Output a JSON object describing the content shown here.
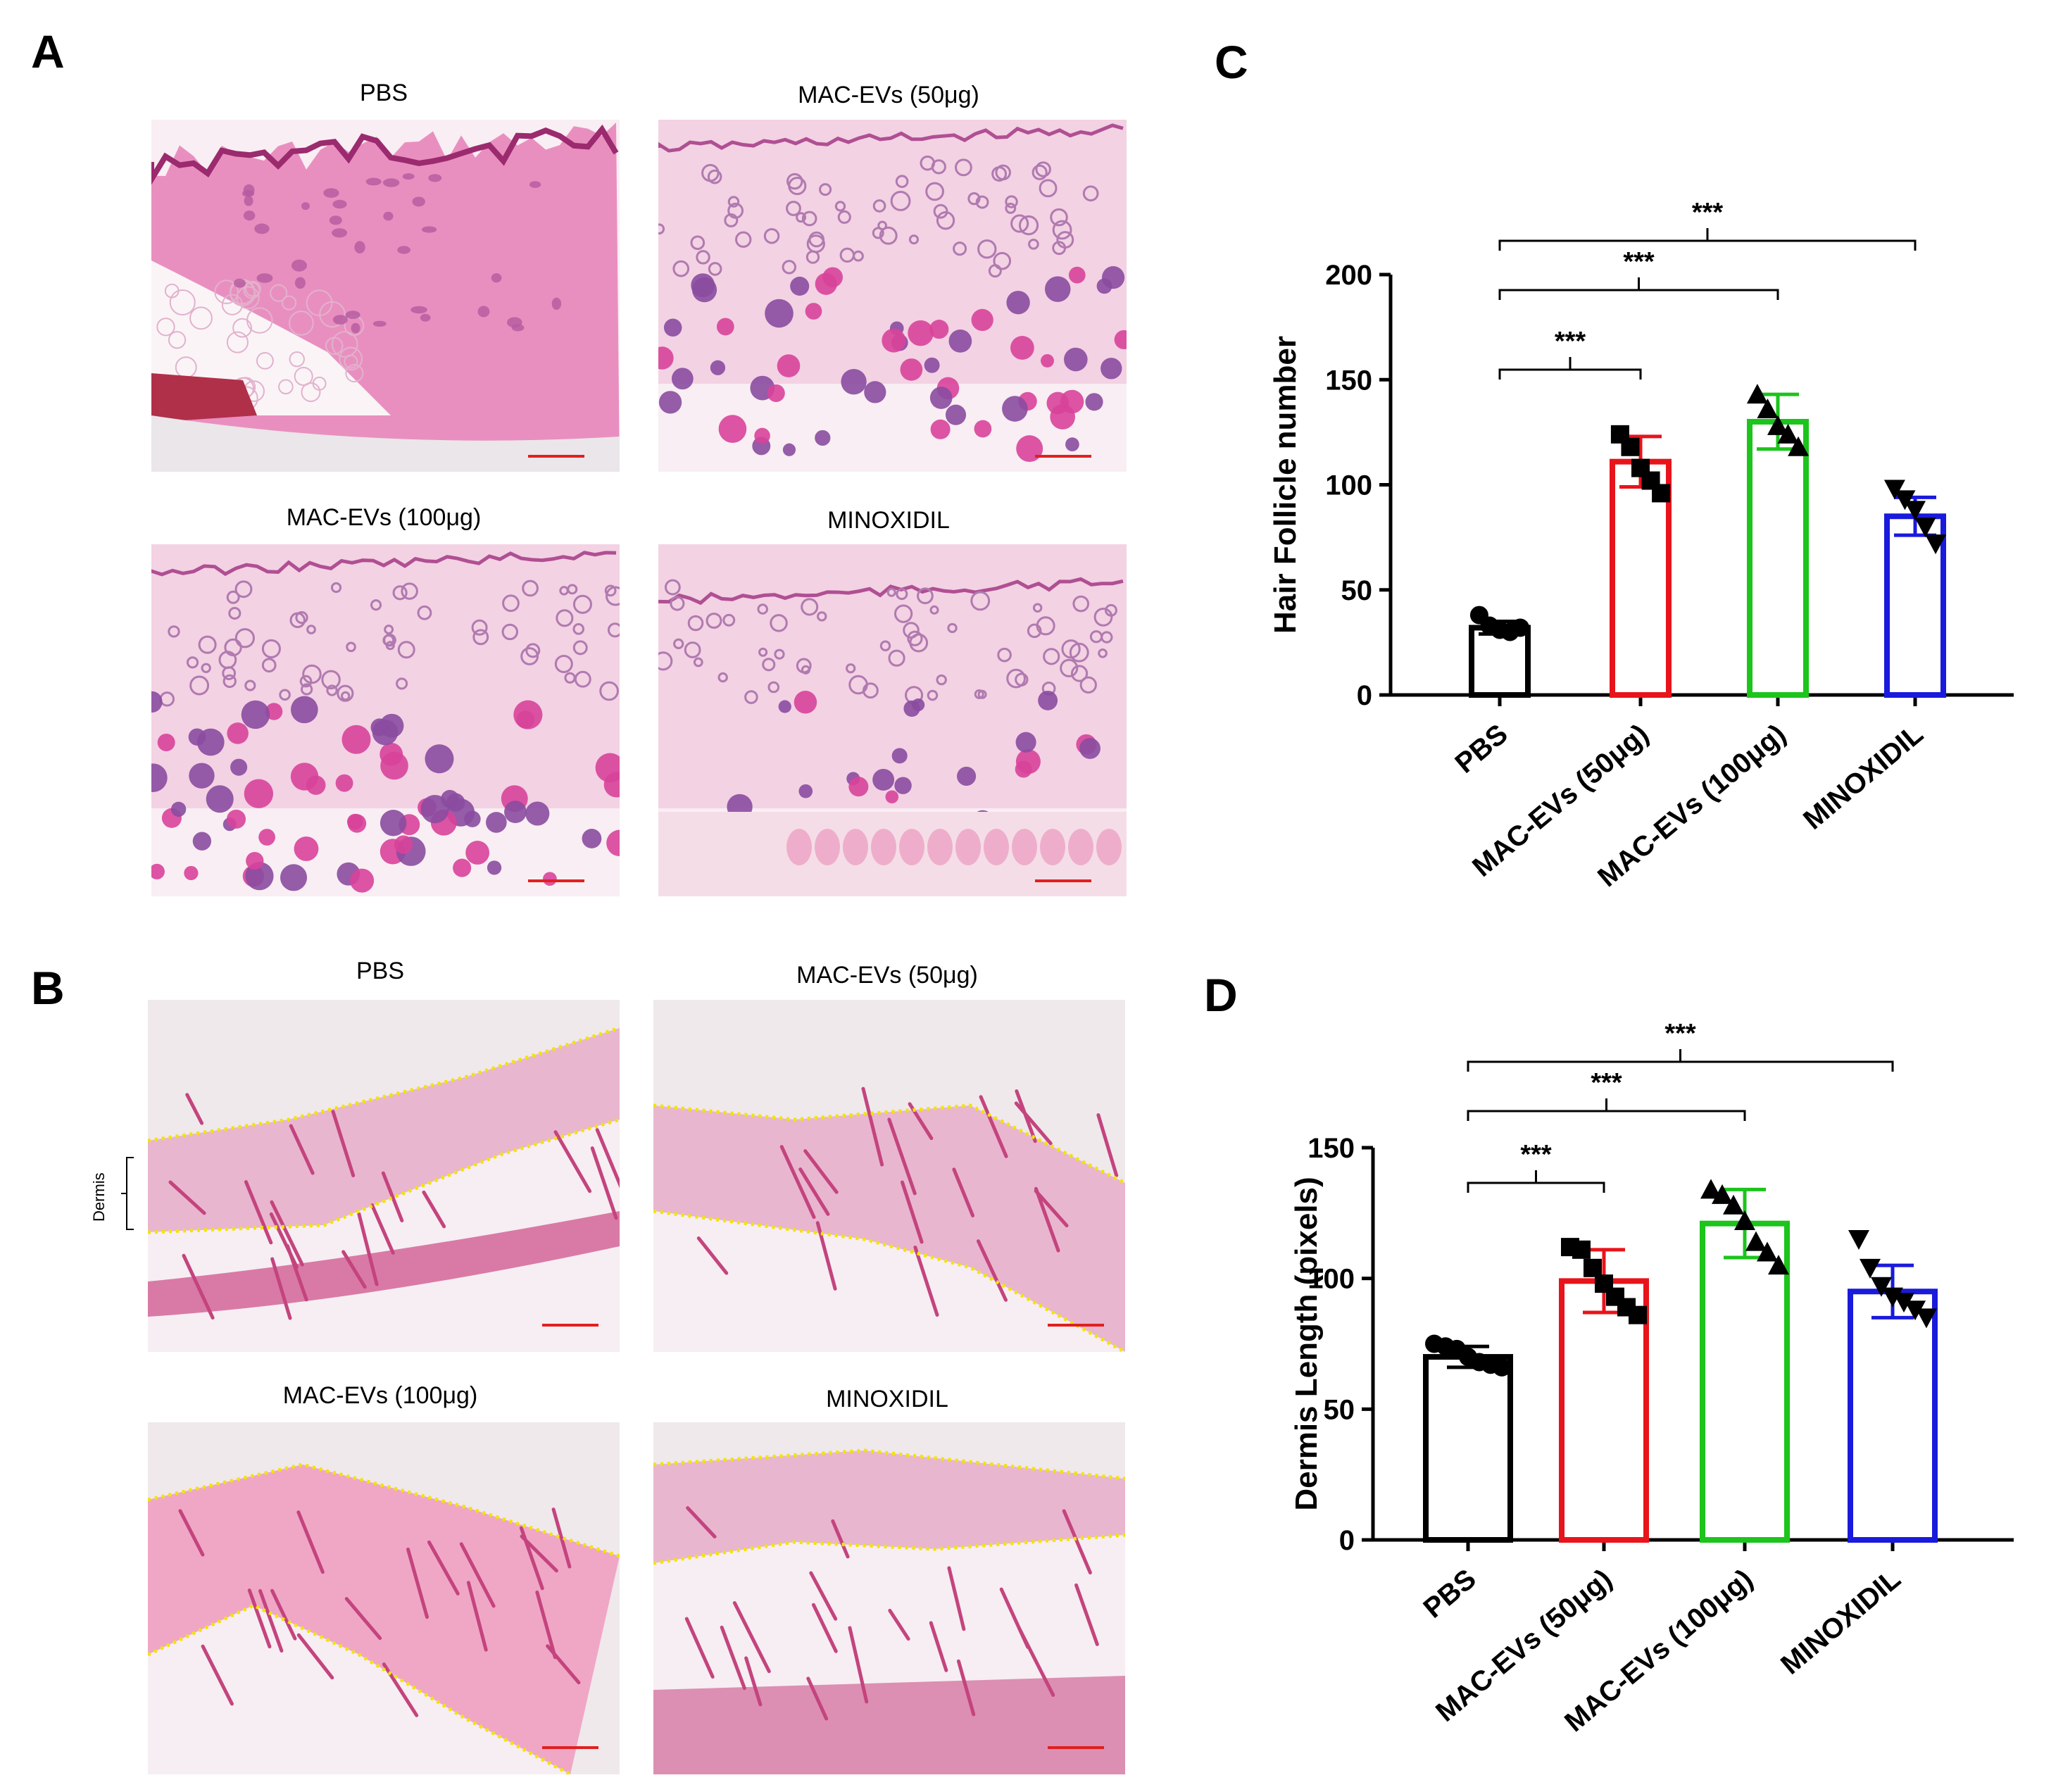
{
  "panels": {
    "A": {
      "letter": "A",
      "images": [
        {
          "label": "PBS",
          "style": "pbs-follicle"
        },
        {
          "label": "MAC-EVs (50μg)",
          "style": "mac50-follicle"
        },
        {
          "label": "MAC-EVs (100μg)",
          "style": "mac100-follicle"
        },
        {
          "label": "MINOXIDIL",
          "style": "minox-follicle"
        }
      ]
    },
    "B": {
      "letter": "B",
      "bracket_label": "Dermis",
      "images": [
        {
          "label": "PBS",
          "style": "pbs-dermis"
        },
        {
          "label": "MAC-EVs (50μg)",
          "style": "mac50-dermis"
        },
        {
          "label": "MAC-EVs (100μg)",
          "style": "mac100-dermis"
        },
        {
          "label": "MINOXIDIL",
          "style": "minox-dermis"
        }
      ]
    },
    "C": {
      "letter": "C"
    },
    "D": {
      "letter": "D"
    }
  },
  "colors": {
    "PBS": "#000000",
    "MAC50": "#e8141b",
    "MAC100": "#1cc41c",
    "MINOX": "#1a1adc",
    "tissue_pink": "#e88bbd",
    "follicle_purple": "#8a4ba0",
    "dermis_line": "#f2e400"
  },
  "chart_data": [
    {
      "type": "bar",
      "panel": "C",
      "ylabel": "Hair Follicle number",
      "xlabel": "",
      "ylim": [
        0,
        200
      ],
      "yticks": [
        0,
        50,
        100,
        150,
        200
      ],
      "categories": [
        "PBS",
        "MAC-EVs (50μg)",
        "MAC-EVs (100μg)",
        "MINOXIDIL"
      ],
      "values": [
        32,
        111,
        130,
        85
      ],
      "errors": [
        3,
        12,
        13,
        9
      ],
      "markers": [
        "circle",
        "square",
        "triangle-up",
        "triangle-down"
      ],
      "points": [
        [
          38,
          33,
          31,
          30,
          32
        ],
        [
          124,
          118,
          108,
          102,
          96
        ],
        [
          143,
          136,
          128,
          124,
          118
        ],
        [
          98,
          93,
          88,
          80,
          72
        ]
      ],
      "significance": [
        {
          "from": 0,
          "to": 1,
          "label": "***"
        },
        {
          "from": 0,
          "to": 2,
          "label": "***"
        },
        {
          "from": 0,
          "to": 3,
          "label": "***"
        }
      ]
    },
    {
      "type": "bar",
      "panel": "D",
      "ylabel": "Dermis Length (pixels)",
      "xlabel": "",
      "ylim": [
        0,
        150
      ],
      "yticks": [
        0,
        50,
        100,
        150
      ],
      "categories": [
        "PBS",
        "MAC-EVs (50μg)",
        "MAC-EVs (100μg)",
        "MINOXIDIL"
      ],
      "values": [
        70,
        99,
        121,
        95
      ],
      "errors": [
        4,
        12,
        13,
        10
      ],
      "markers": [
        "circle",
        "square",
        "triangle-up",
        "triangle-down"
      ],
      "points": [
        [
          75,
          74,
          73,
          70,
          68,
          67,
          66
        ],
        [
          112,
          111,
          104,
          98,
          93,
          89,
          86
        ],
        [
          134,
          132,
          128,
          122,
          114,
          110,
          105
        ],
        [
          115,
          104,
          97,
          93,
          91,
          88,
          85
        ]
      ],
      "significance": [
        {
          "from": 0,
          "to": 1,
          "label": "***"
        },
        {
          "from": 0,
          "to": 2,
          "label": "***"
        },
        {
          "from": 0,
          "to": 3,
          "label": "***"
        }
      ]
    }
  ]
}
